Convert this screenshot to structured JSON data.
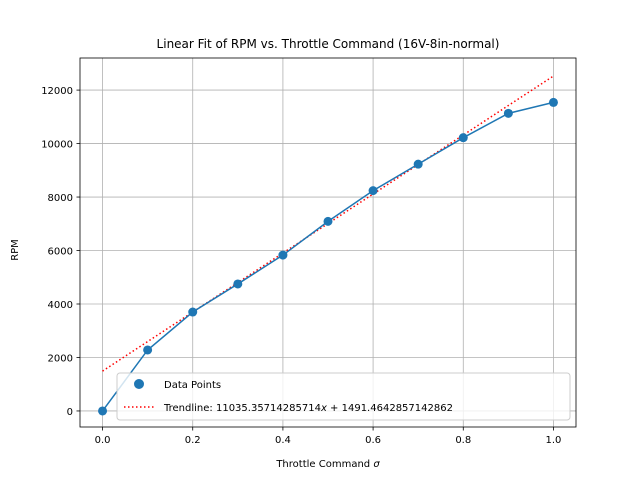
{
  "chart_data": {
    "type": "scatter",
    "title": "Linear Fit of RPM vs. Throttle Command (16V-8in-normal)",
    "xlabel": "Throttle Command σ",
    "ylabel": "RPM",
    "xlim": [
      -0.05,
      1.05
    ],
    "ylim": [
      -600,
      13200
    ],
    "xticks": [
      0.0,
      0.2,
      0.4,
      0.6,
      0.8,
      1.0
    ],
    "xtick_labels": [
      "0.0",
      "0.2",
      "0.4",
      "0.6",
      "0.8",
      "1.0"
    ],
    "yticks": [
      0,
      2000,
      4000,
      6000,
      8000,
      10000,
      12000
    ],
    "ytick_labels": [
      "0",
      "2000",
      "4000",
      "6000",
      "8000",
      "10000",
      "12000"
    ],
    "grid": true,
    "legend_position": "bottom-right",
    "series": [
      {
        "name": "Data Points",
        "kind": "scatter+line",
        "color": "#1f77b4",
        "x": [
          0.0,
          0.1,
          0.2,
          0.3,
          0.4,
          0.5,
          0.6,
          0.7,
          0.8,
          0.9,
          1.0
        ],
        "y": [
          0,
          2280,
          3700,
          4750,
          5830,
          7090,
          8240,
          9230,
          10220,
          11130,
          11540
        ]
      },
      {
        "name": "Trendline: 11035.35714285714x + 1491.4642857142862",
        "kind": "line-dotted",
        "color": "#ff0000",
        "slope": 11035.35714285714,
        "intercept": 1491.4642857142862,
        "x": [
          0.0,
          1.0
        ]
      }
    ],
    "legend": {
      "scatter_label": "Data Points",
      "trend_prefix": "Trendline: 11035.35714285714",
      "trend_var": "x",
      "trend_suffix": " + 1491.4642857142862"
    }
  }
}
